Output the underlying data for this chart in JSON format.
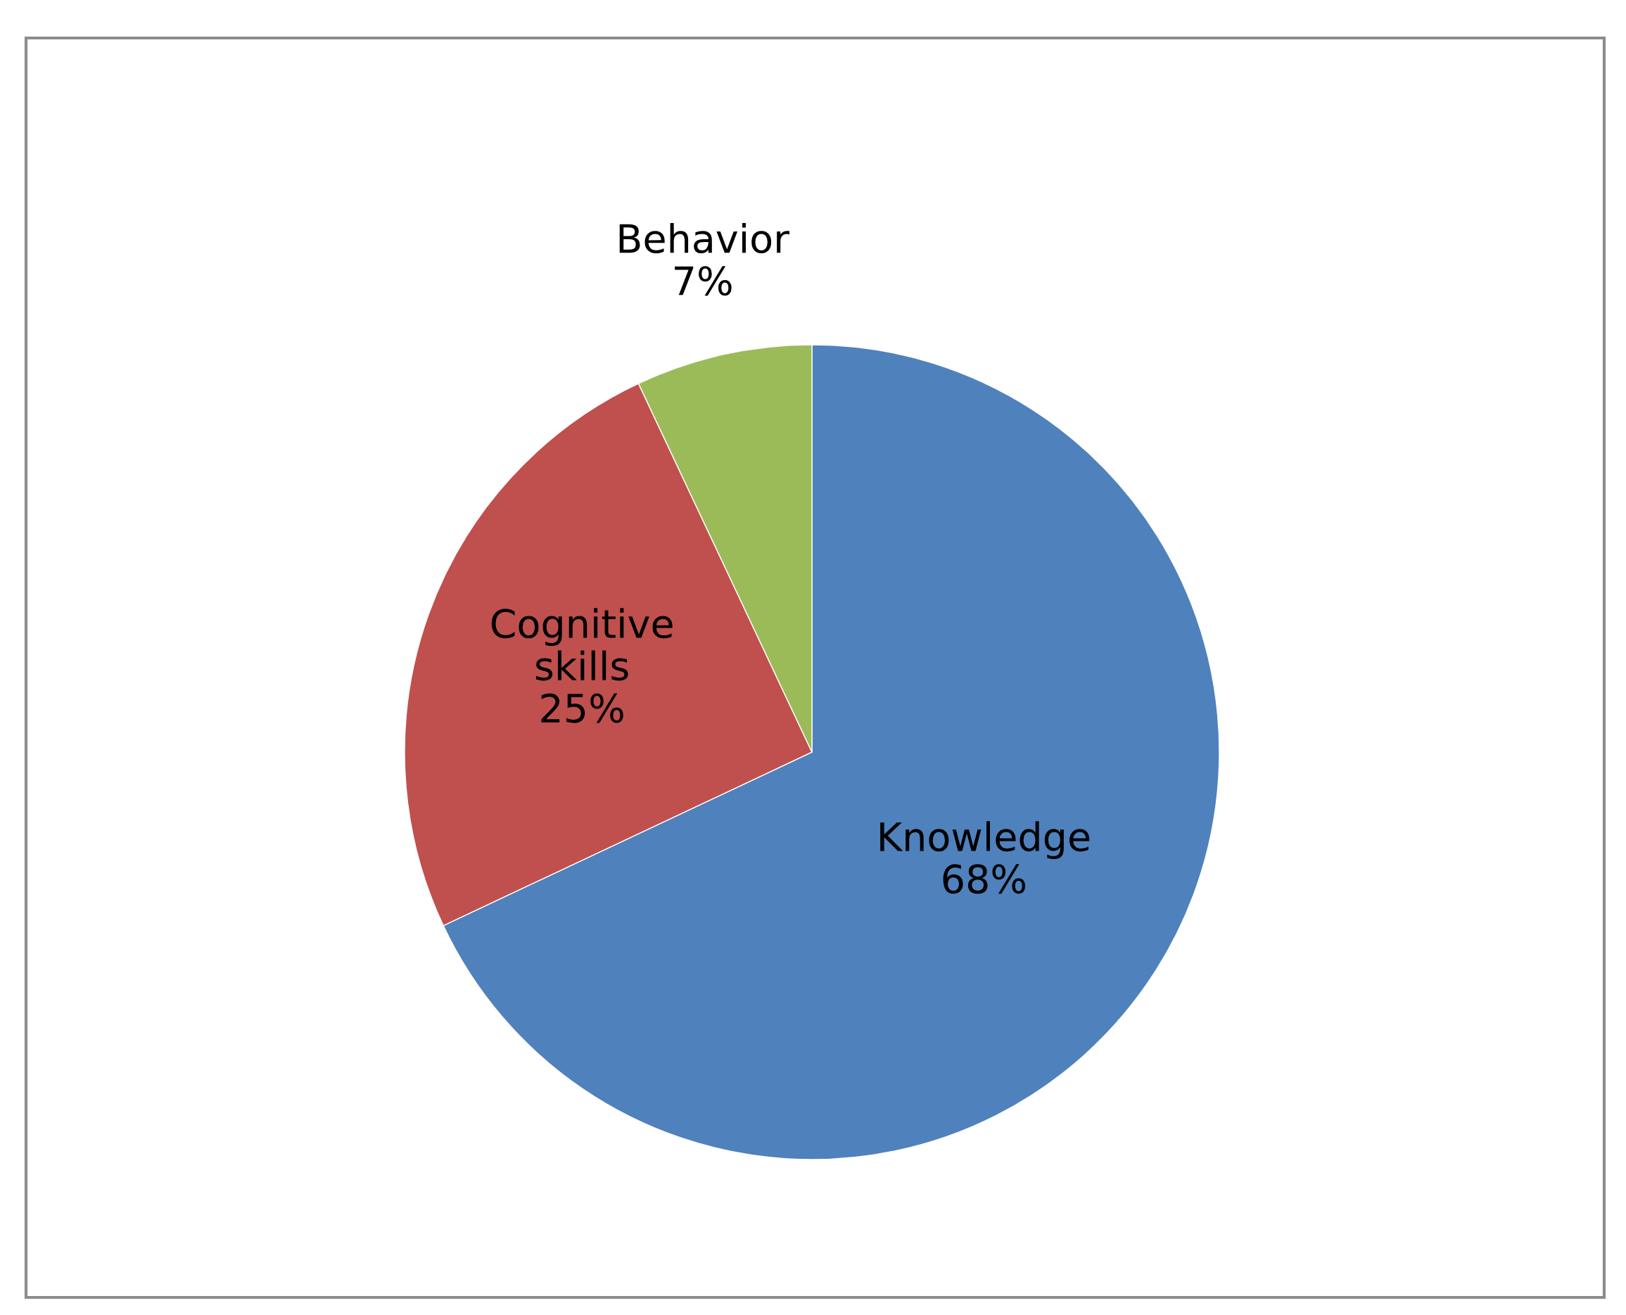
{
  "chart_data": {
    "type": "pie",
    "categories": [
      "Knowledge",
      "Cognitive\nskills",
      "Behavior"
    ],
    "values": [
      68,
      25,
      7
    ],
    "value_labels": [
      "68%",
      "25%",
      "7%"
    ],
    "colors": [
      "#4f81bd",
      "#c0504d",
      "#9bbb59"
    ],
    "legend": false
  }
}
